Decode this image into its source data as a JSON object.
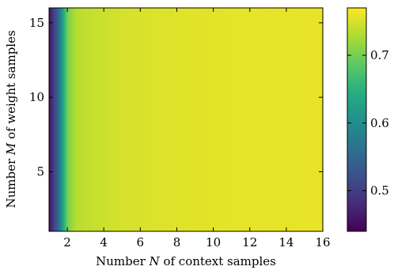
{
  "chart_data": {
    "type": "heatmap",
    "xlabel": "Number N of context samples",
    "xlabel_parts": [
      "Number ",
      "N",
      " of context samples"
    ],
    "ylabel": "Number M of weight samples",
    "ylabel_parts": [
      "Number ",
      "M",
      " of weight samples"
    ],
    "xlim": [
      1,
      16
    ],
    "ylim": [
      1,
      16
    ],
    "xticks": [
      2,
      4,
      6,
      8,
      10,
      12,
      14,
      16
    ],
    "yticks": [
      5,
      10,
      15
    ],
    "colormap": "viridis",
    "colorbar": {
      "range": [
        0.44,
        0.77
      ],
      "ticks": [
        0.5,
        0.6,
        0.7
      ]
    },
    "description_values": {
      "x_columns": [
        1,
        1.5,
        2,
        2.5,
        3,
        4,
        5,
        6,
        8,
        10,
        12,
        14,
        16
      ],
      "value_profile": [
        0.45,
        0.55,
        0.7,
        0.735,
        0.74,
        0.745,
        0.75,
        0.752,
        0.755,
        0.757,
        0.758,
        0.759,
        0.76
      ]
    }
  }
}
